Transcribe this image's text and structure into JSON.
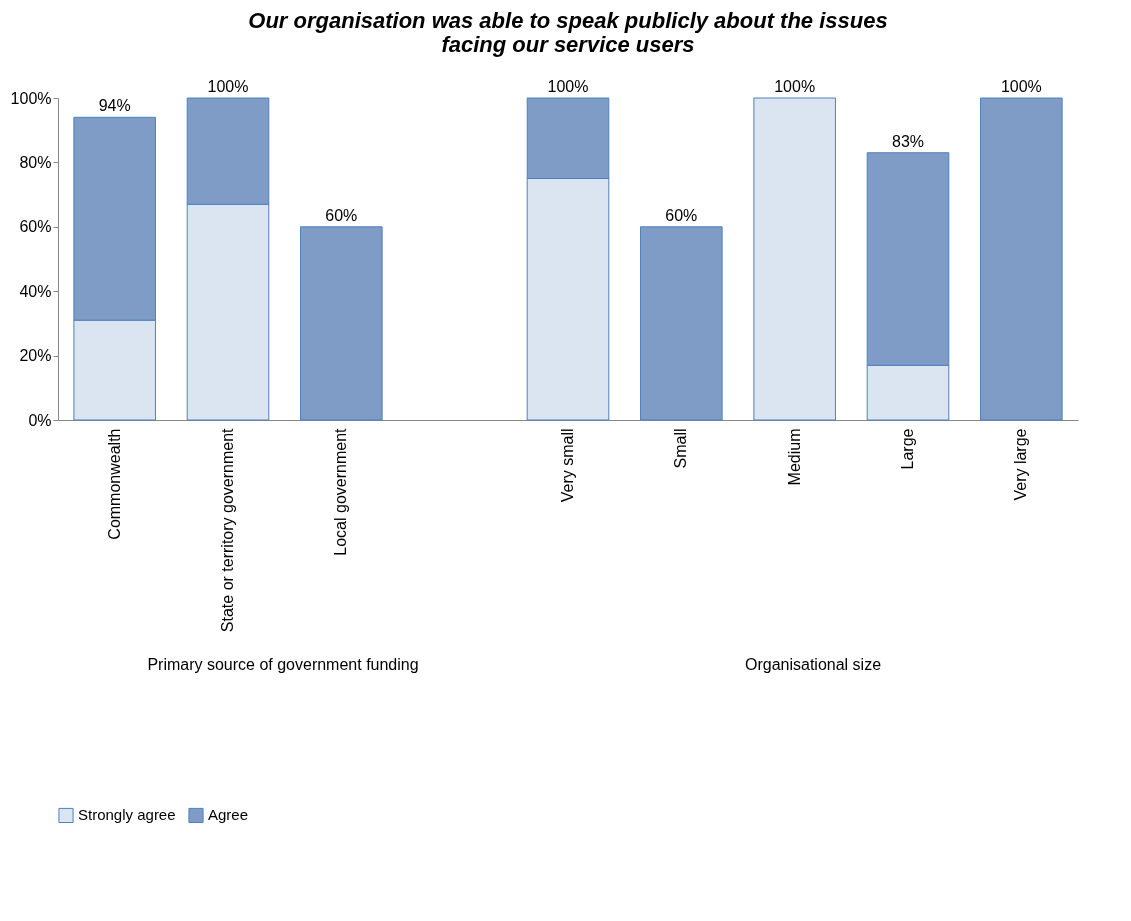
{
  "chart_data": {
    "type": "bar",
    "title": "Our organisation was able to speak publicly about the issues facing our service users",
    "stacked": true,
    "categories": [
      "Commonwealth",
      "State or territory government",
      "Local government",
      null,
      "Very small",
      "Small",
      "Medium",
      "Large",
      "Very large"
    ],
    "series": [
      {
        "name": "Strongly agree",
        "color": "#dbe5f1",
        "values": [
          31,
          67,
          null,
          null,
          75,
          null,
          100,
          17,
          null
        ]
      },
      {
        "name": "Agree",
        "color": "#7f9cc6",
        "values": [
          63,
          33,
          60,
          null,
          25,
          60,
          null,
          66,
          100
        ]
      }
    ],
    "totals": [
      "94%",
      "100%",
      "60%",
      null,
      "100%",
      "60%",
      "100%",
      "83%",
      "100%"
    ],
    "ylim": [
      0,
      100
    ],
    "yticks": [
      {
        "value": 0,
        "label": "0%"
      },
      {
        "value": 20,
        "label": "20%"
      },
      {
        "value": 40,
        "label": "40%"
      },
      {
        "value": 60,
        "label": "60%"
      },
      {
        "value": 80,
        "label": "80%"
      },
      {
        "value": 100,
        "label": "100%"
      }
    ],
    "grid": false,
    "legend": "bottom",
    "annotations": [
      "Primary source of government funding",
      "Organisational size"
    ]
  }
}
